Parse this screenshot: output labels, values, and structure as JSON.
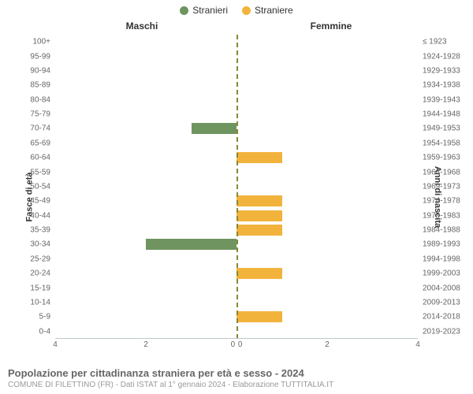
{
  "legend": {
    "male": {
      "label": "Stranieri",
      "color": "#6f9460"
    },
    "female": {
      "label": "Straniere",
      "color": "#f2b33d"
    }
  },
  "col_headers": {
    "left": "Maschi",
    "right": "Femmine"
  },
  "axis_titles": {
    "left": "Fasce di età",
    "right": "Anni di nascita"
  },
  "chart": {
    "type": "population-pyramid",
    "x_max": 4,
    "x_ticks": [
      4,
      2,
      0,
      0,
      2,
      4
    ],
    "background_color": "#ffffff",
    "center_line_color": "#888833",
    "tick_color": "#666666",
    "rows": [
      {
        "age": "100+",
        "birth": "≤ 1923",
        "m": 0,
        "f": 0
      },
      {
        "age": "95-99",
        "birth": "1924-1928",
        "m": 0,
        "f": 0
      },
      {
        "age": "90-94",
        "birth": "1929-1933",
        "m": 0,
        "f": 0
      },
      {
        "age": "85-89",
        "birth": "1934-1938",
        "m": 0,
        "f": 0
      },
      {
        "age": "80-84",
        "birth": "1939-1943",
        "m": 0,
        "f": 0
      },
      {
        "age": "75-79",
        "birth": "1944-1948",
        "m": 0,
        "f": 0
      },
      {
        "age": "70-74",
        "birth": "1949-1953",
        "m": 1,
        "f": 0
      },
      {
        "age": "65-69",
        "birth": "1954-1958",
        "m": 0,
        "f": 0
      },
      {
        "age": "60-64",
        "birth": "1959-1963",
        "m": 0,
        "f": 1
      },
      {
        "age": "55-59",
        "birth": "1964-1968",
        "m": 0,
        "f": 0
      },
      {
        "age": "50-54",
        "birth": "1969-1973",
        "m": 0,
        "f": 0
      },
      {
        "age": "45-49",
        "birth": "1974-1978",
        "m": 0,
        "f": 1
      },
      {
        "age": "40-44",
        "birth": "1979-1983",
        "m": 0,
        "f": 1
      },
      {
        "age": "35-39",
        "birth": "1984-1988",
        "m": 0,
        "f": 1
      },
      {
        "age": "30-34",
        "birth": "1989-1993",
        "m": 2,
        "f": 0
      },
      {
        "age": "25-29",
        "birth": "1994-1998",
        "m": 0,
        "f": 0
      },
      {
        "age": "20-24",
        "birth": "1999-2003",
        "m": 0,
        "f": 1
      },
      {
        "age": "15-19",
        "birth": "2004-2008",
        "m": 0,
        "f": 0
      },
      {
        "age": "10-14",
        "birth": "2009-2013",
        "m": 0,
        "f": 0
      },
      {
        "age": "5-9",
        "birth": "2014-2018",
        "m": 0,
        "f": 1
      },
      {
        "age": "0-4",
        "birth": "2019-2023",
        "m": 0,
        "f": 0
      }
    ]
  },
  "caption": {
    "title": "Popolazione per cittadinanza straniera per età e sesso - 2024",
    "subtitle": "COMUNE DI FILETTINO (FR) - Dati ISTAT al 1° gennaio 2024 - Elaborazione TUTTITALIA.IT"
  }
}
